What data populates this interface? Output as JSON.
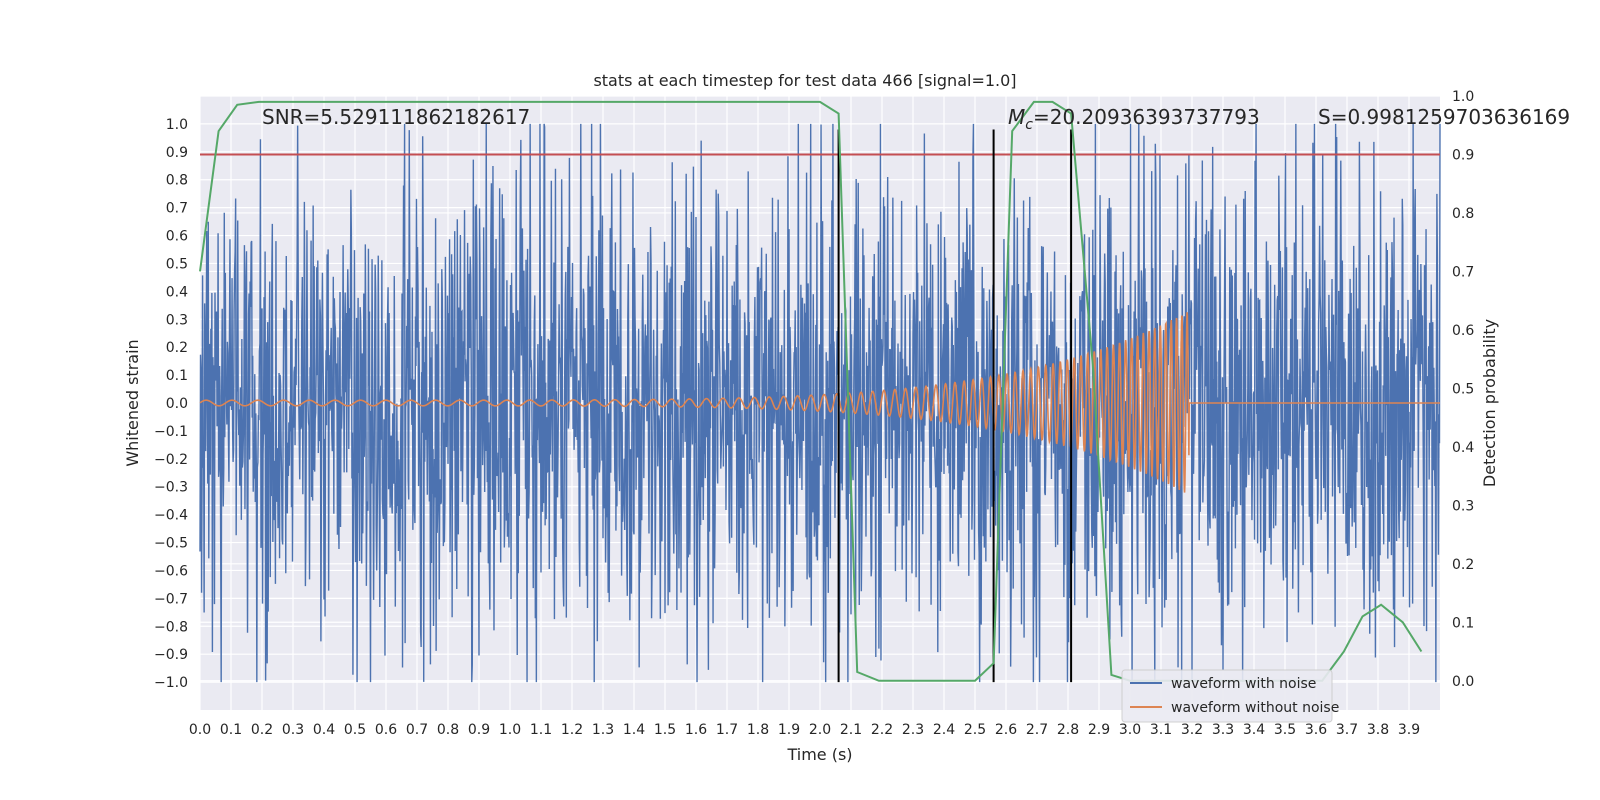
{
  "chart_data": {
    "type": "line",
    "title": "stats at each timestep for test data 466 [signal=1.0]",
    "xlabel": "Time (s)",
    "ylabel": "Whitened strain",
    "y2label": "Detection probability",
    "xlim": [
      0.0,
      4.0
    ],
    "ylim": [
      -1.1,
      1.1
    ],
    "y2lim": [
      -0.05,
      1.0
    ],
    "xticks": [
      "0.0",
      "0.1",
      "0.2",
      "0.3",
      "0.4",
      "0.5",
      "0.6",
      "0.7",
      "0.8",
      "0.9",
      "1.0",
      "1.1",
      "1.2",
      "1.3",
      "1.4",
      "1.5",
      "1.6",
      "1.7",
      "1.8",
      "1.9",
      "2.0",
      "2.1",
      "2.2",
      "2.3",
      "2.4",
      "2.5",
      "2.6",
      "2.7",
      "2.8",
      "2.9",
      "3.0",
      "3.1",
      "3.2",
      "3.3",
      "3.4",
      "3.5",
      "3.6",
      "3.7",
      "3.8",
      "3.9"
    ],
    "yticks": [
      "1.0",
      "0.9",
      "0.8",
      "0.7",
      "0.6",
      "0.5",
      "0.4",
      "0.3",
      "0.2",
      "0.1",
      "0.0",
      "−0.1",
      "−0.2",
      "−0.3",
      "−0.4",
      "−0.5",
      "−0.6",
      "−0.7",
      "−0.8",
      "−0.9",
      "−1.0"
    ],
    "y2ticks": [
      "1.0",
      "0.9",
      "0.8",
      "0.7",
      "0.6",
      "0.5",
      "0.4",
      "0.3",
      "0.2",
      "0.1",
      "0.0"
    ],
    "annotations": {
      "snr": "SNR=5.529111862182617",
      "mc_symbol": "M",
      "mc_sub": "c",
      "mc_value": "=20.20936393737793",
      "s": "S=0.9981259703636169"
    },
    "legend": {
      "placement": "lower-right",
      "entries": [
        {
          "label": "waveform with noise",
          "color": "#4c72b0"
        },
        {
          "label": "waveform without noise",
          "color": "#dd8452"
        }
      ]
    },
    "colors": {
      "background": "#eaeaf2",
      "grid": "#ffffff",
      "noise": "#4c72b0",
      "clean": "#dd8452",
      "probability": "#55a868",
      "threshold": "#c44e52",
      "markers": "#000000"
    },
    "noise_series": {
      "name": "waveform with noise",
      "t_start": 0.0,
      "t_end": 4.0,
      "std": 0.42,
      "clip": [
        -1.0,
        1.0
      ]
    },
    "clean_series": {
      "name": "waveform without noise",
      "t_start": 0.0,
      "t_merge": 3.19,
      "t_end": 4.0,
      "amp_start": 0.01,
      "amp_peak": 0.33,
      "freq_start": 12,
      "freq_end": 60
    },
    "probability_series": {
      "name": "Detection probability",
      "t": [
        0.0,
        0.06,
        0.12,
        0.19,
        1.0,
        2.0,
        2.06,
        2.12,
        2.19,
        2.5,
        2.56,
        2.62,
        2.69,
        2.75,
        2.81,
        2.88,
        2.94,
        3.0,
        3.06,
        3.12,
        3.19,
        3.25,
        3.31,
        3.38,
        3.44,
        3.5,
        3.56,
        3.62,
        3.69,
        3.75,
        3.81,
        3.88,
        3.94
      ],
      "p": [
        0.7,
        0.94,
        0.985,
        0.99,
        0.99,
        0.99,
        0.97,
        0.015,
        0.0,
        0.0,
        0.03,
        0.94,
        0.99,
        0.99,
        0.97,
        0.54,
        0.01,
        0.0,
        0.0,
        0.0,
        0.0,
        0.0,
        0.0,
        0.0,
        0.0,
        0.0,
        0.0,
        0.0,
        0.05,
        0.11,
        0.13,
        0.1,
        0.05
      ]
    },
    "threshold": 0.9,
    "vertical_markers": [
      2.06,
      2.56,
      2.81
    ]
  }
}
